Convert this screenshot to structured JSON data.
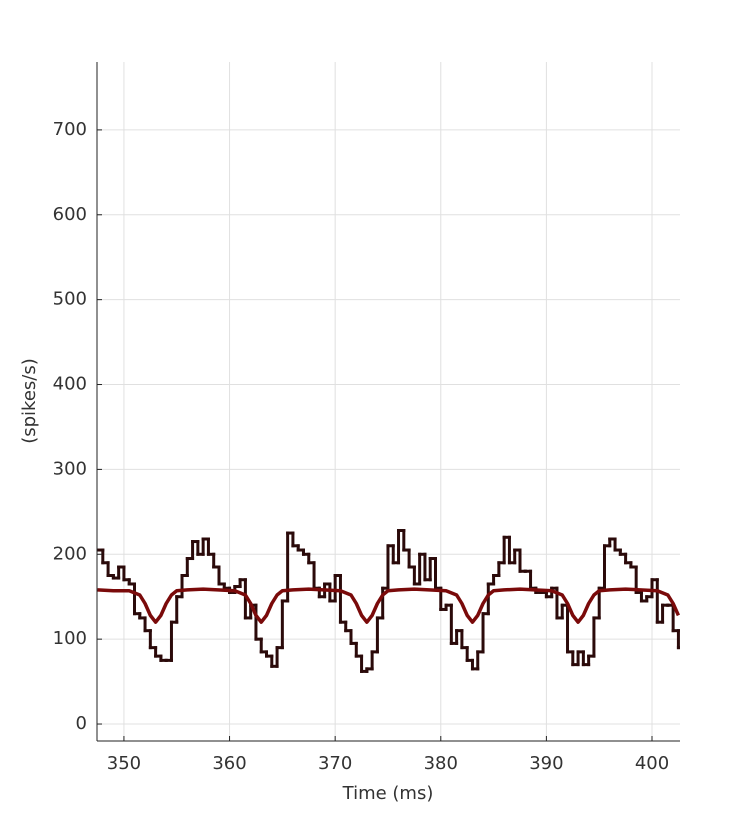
{
  "chart_data": {
    "type": "line",
    "x_label": "Time (ms)",
    "y_label": "(spikes/s)",
    "xlim": [
      347.45,
      402.65
    ],
    "ylim": [
      -20,
      780
    ],
    "xticks": [
      350,
      360,
      370,
      380,
      390,
      400
    ],
    "yticks": [
      0,
      100,
      200,
      300,
      400,
      500,
      600,
      700
    ],
    "grid": true,
    "series": [
      {
        "color": "#2b0a0a",
        "step": true,
        "x": [
          347.5,
          348,
          348.5,
          349,
          349.5,
          350,
          350.5,
          351,
          351.5,
          352,
          352.5,
          353,
          353.5,
          354,
          354.5,
          355,
          355.5,
          356,
          356.5,
          357,
          357.5,
          358,
          358.5,
          359,
          359.5,
          360,
          360.5,
          361,
          361.5,
          362,
          362.5,
          363,
          363.5,
          364,
          364.5,
          365,
          365.5,
          366,
          366.5,
          367,
          367.5,
          368,
          368.5,
          369,
          369.5,
          370,
          370.5,
          371,
          371.5,
          372,
          372.5,
          373,
          373.5,
          374,
          374.5,
          375,
          375.5,
          376,
          376.5,
          377,
          377.5,
          378,
          378.5,
          379,
          379.5,
          380,
          380.5,
          381,
          381.5,
          382,
          382.5,
          383,
          383.5,
          384,
          384.5,
          385,
          385.5,
          386,
          386.5,
          387,
          387.5,
          388,
          388.5,
          389,
          389.5,
          390,
          390.5,
          391,
          391.5,
          392,
          392.5,
          393,
          393.5,
          394,
          394.5,
          395,
          395.5,
          396,
          396.5,
          397,
          397.5,
          398,
          398.5,
          399,
          399.5,
          400,
          400.5,
          401,
          401.5,
          402,
          402.5
        ],
        "values": [
          205,
          190,
          175,
          172,
          185,
          170,
          165,
          130,
          125,
          110,
          90,
          80,
          75,
          75,
          120,
          150,
          175,
          195,
          215,
          200,
          218,
          200,
          185,
          165,
          160,
          155,
          162,
          170,
          125,
          140,
          100,
          85,
          80,
          68,
          90,
          145,
          225,
          210,
          205,
          200,
          190,
          160,
          150,
          165,
          145,
          175,
          120,
          110,
          95,
          80,
          62,
          65,
          85,
          125,
          160,
          210,
          190,
          228,
          205,
          185,
          165,
          200,
          170,
          195,
          160,
          135,
          140,
          95,
          110,
          90,
          75,
          65,
          85,
          130,
          165,
          175,
          190,
          220,
          190,
          205,
          180,
          180,
          160,
          155,
          155,
          150,
          160,
          125,
          140,
          85,
          70,
          85,
          70,
          80,
          125,
          160,
          210,
          218,
          205,
          200,
          190,
          185,
          155,
          145,
          150,
          170,
          120,
          140,
          140,
          110,
          90
        ]
      },
      {
        "color": "#7a0a0a",
        "x": [
          347.5,
          349,
          350.5,
          351.5,
          352,
          352.5,
          353,
          353.5,
          354,
          354.5,
          355,
          356,
          357.5,
          360.5,
          361.5,
          362,
          362.5,
          363,
          363.5,
          364,
          364.5,
          365,
          366,
          367.5,
          370.5,
          371.5,
          372,
          372.5,
          373,
          373.5,
          374,
          374.5,
          375,
          376,
          377.5,
          380.5,
          381.5,
          382,
          382.5,
          383,
          383.5,
          384,
          384.5,
          385,
          386,
          387.5,
          390.5,
          391.5,
          392,
          392.5,
          393,
          393.5,
          394,
          394.5,
          395,
          396,
          397.5,
          400.5,
          401.5,
          402,
          402.5
        ],
        "values": [
          158,
          157,
          157,
          152,
          142,
          128,
          120,
          128,
          142,
          152,
          157,
          158,
          159,
          157,
          152,
          142,
          128,
          120,
          128,
          142,
          152,
          157,
          158,
          159,
          157,
          152,
          142,
          128,
          120,
          128,
          142,
          152,
          157,
          158,
          159,
          157,
          152,
          142,
          128,
          120,
          128,
          142,
          152,
          157,
          158,
          159,
          157,
          152,
          142,
          128,
          120,
          128,
          142,
          152,
          157,
          158,
          159,
          157,
          152,
          142,
          128
        ]
      }
    ]
  }
}
